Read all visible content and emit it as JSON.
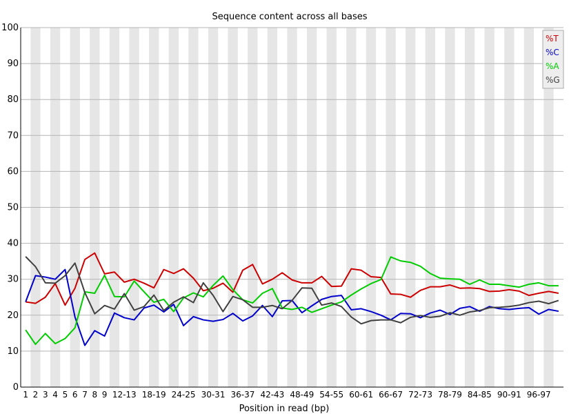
{
  "chart_data": {
    "type": "line",
    "title": "Sequence content across all bases",
    "xlabel": "Position in read (bp)",
    "ylabel": "",
    "ylim": [
      0,
      100
    ],
    "yticks": [
      0,
      10,
      20,
      30,
      40,
      50,
      60,
      70,
      80,
      90,
      100
    ],
    "grid": "horizontal lines, alternating vertical bands",
    "legend_position": "top-right",
    "categories": [
      "1",
      "2",
      "3",
      "4",
      "5",
      "6",
      "7",
      "8",
      "9",
      "10-11",
      "12-13",
      "14-15",
      "16-17",
      "18-19",
      "20-21",
      "22-23",
      "24-25",
      "26-27",
      "28-29",
      "30-31",
      "32-33",
      "34-35",
      "36-37",
      "38-39",
      "40-41",
      "42-43",
      "44-45",
      "46-47",
      "48-49",
      "50-51",
      "52-53",
      "54-55",
      "56-57",
      "58-59",
      "60-61",
      "62-63",
      "64-65",
      "66-67",
      "68-69",
      "70-71",
      "72-73",
      "74-75",
      "76-77",
      "78-79",
      "80-81",
      "82-83",
      "84-85",
      "86-87",
      "88-89",
      "90-91",
      "92-93",
      "94-95",
      "96-97",
      "98-99",
      "100-101"
    ],
    "xtick_labels": [
      "1",
      "2",
      "3",
      "4",
      "5",
      "6",
      "7",
      "8",
      "9",
      "12-13",
      "18-19",
      "24-25",
      "30-31",
      "36-37",
      "42-43",
      "48-49",
      "54-55",
      "60-61",
      "66-67",
      "72-73",
      "78-79",
      "84-85",
      "90-91",
      "96-97"
    ],
    "series": [
      {
        "name": "%T",
        "color": "#cc0000",
        "values": [
          23.7,
          23.3,
          25.0,
          28.8,
          22.8,
          27.5,
          35.5,
          37.3,
          31.5,
          32.0,
          29.2,
          30.0,
          28.9,
          27.6,
          32.7,
          31.6,
          32.9,
          30.3,
          26.8,
          27.5,
          28.9,
          26.4,
          32.5,
          34.1,
          28.7,
          30.0,
          31.8,
          29.8,
          29.0,
          29.0,
          30.8,
          28.0,
          28.1,
          32.9,
          32.5,
          30.7,
          30.5,
          25.9,
          25.8,
          25.0,
          26.9,
          27.9,
          27.9,
          28.4,
          27.5,
          27.6,
          27.4,
          26.6,
          26.7,
          27.1,
          26.7,
          25.5,
          26.1,
          26.6,
          26.1
        ]
      },
      {
        "name": "%C",
        "color": "#0000cc",
        "values": [
          23.7,
          31.0,
          30.6,
          30.0,
          32.7,
          19.5,
          11.6,
          15.7,
          14.2,
          20.6,
          19.3,
          18.7,
          22.0,
          22.8,
          20.9,
          23.0,
          17.1,
          19.6,
          18.7,
          18.3,
          18.8,
          20.5,
          18.4,
          19.8,
          22.7,
          19.6,
          24.0,
          24.1,
          20.7,
          22.6,
          24.4,
          25.2,
          25.5,
          21.5,
          21.8,
          21.0,
          20.0,
          18.7,
          20.5,
          20.4,
          19.3,
          20.6,
          21.4,
          20.2,
          21.9,
          22.4,
          21.1,
          22.4,
          21.8,
          21.6,
          21.9,
          22.1,
          20.3,
          21.6,
          21.1
        ]
      },
      {
        "name": "%A",
        "color": "#00cc00",
        "values": [
          15.9,
          11.9,
          14.9,
          12.1,
          13.5,
          16.5,
          26.5,
          26.1,
          31.1,
          25.2,
          25.1,
          29.5,
          26.5,
          23.6,
          24.4,
          21.0,
          24.8,
          26.2,
          25.1,
          28.3,
          30.9,
          27.1,
          24.3,
          23.4,
          26.1,
          27.4,
          22.0,
          21.6,
          22.2,
          20.8,
          21.8,
          22.8,
          23.7,
          25.6,
          27.3,
          28.8,
          29.9,
          36.2,
          35.1,
          34.7,
          33.6,
          31.6,
          30.3,
          30.1,
          30.0,
          28.6,
          29.8,
          28.6,
          28.6,
          28.2,
          27.8,
          28.6,
          29.0,
          28.2,
          28.2
        ]
      },
      {
        "name": "%G",
        "color": "#404040",
        "values": [
          36.3,
          33.5,
          29.0,
          28.9,
          31.0,
          34.5,
          26.3,
          20.4,
          22.7,
          21.7,
          26.0,
          21.4,
          22.4,
          25.6,
          21.3,
          23.6,
          25.1,
          23.5,
          29.0,
          25.5,
          21.0,
          25.2,
          24.3,
          22.2,
          22.2,
          22.7,
          21.8,
          24.1,
          27.6,
          27.5,
          22.8,
          23.4,
          22.4,
          19.5,
          17.6,
          18.5,
          18.7,
          18.7,
          17.9,
          19.4,
          19.9,
          19.4,
          19.7,
          20.7,
          20.0,
          20.9,
          21.3,
          22.1,
          22.2,
          22.4,
          22.8,
          23.5,
          23.9,
          23.2,
          24.1
        ]
      }
    ]
  }
}
